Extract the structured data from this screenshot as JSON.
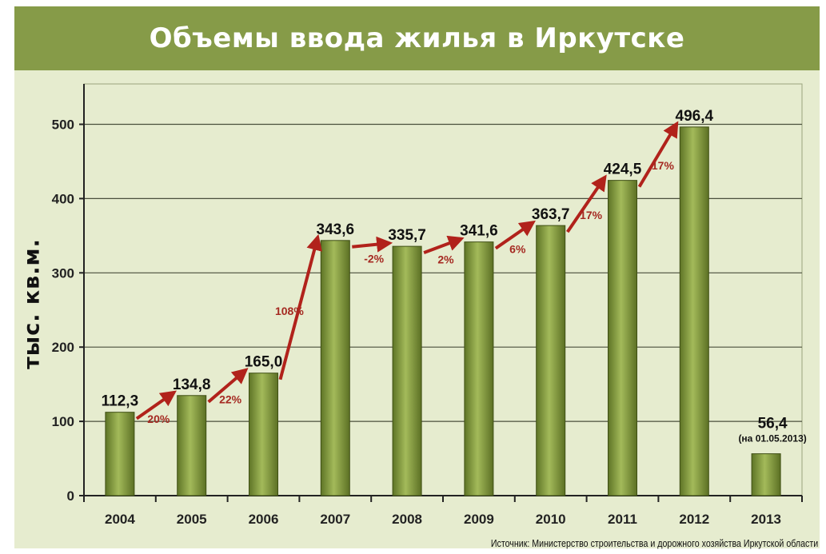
{
  "title": "Объемы ввода жилья в Иркутске",
  "source": "Источник: Министерство строительства и дорожного хозяйства Иркутской области",
  "chart_data": {
    "type": "bar",
    "title": "Объемы ввода жилья в Иркутске",
    "xlabel": "",
    "ylabel": "тыс. кв.м.",
    "ylim": [
      0,
      550
    ],
    "yticks": [
      0,
      100,
      200,
      300,
      400,
      500
    ],
    "grid": true,
    "categories": [
      "2004",
      "2005",
      "2006",
      "2007",
      "2008",
      "2009",
      "2010",
      "2011",
      "2012",
      "2013"
    ],
    "values": [
      112.3,
      134.8,
      165.0,
      343.6,
      335.7,
      341.6,
      363.7,
      424.5,
      496.4,
      56.4
    ],
    "value_labels": [
      "112,3",
      "134,8",
      "165,0",
      "343,6",
      "335,7",
      "341,6",
      "363,7",
      "424,5",
      "496,4",
      "56,4"
    ],
    "annotations": [
      "(на 01.05.2013)"
    ],
    "growth_labels": [
      "20%",
      "22%",
      "108%",
      "-2%",
      "2%",
      "6%",
      "17%",
      "17%"
    ],
    "colors": {
      "bar": "#7e9637",
      "bar_light": "#a7be5d",
      "bar_dark": "#566a22",
      "arrow": "#b1221b",
      "header": "#869b48",
      "background": "#e6eccf"
    }
  }
}
